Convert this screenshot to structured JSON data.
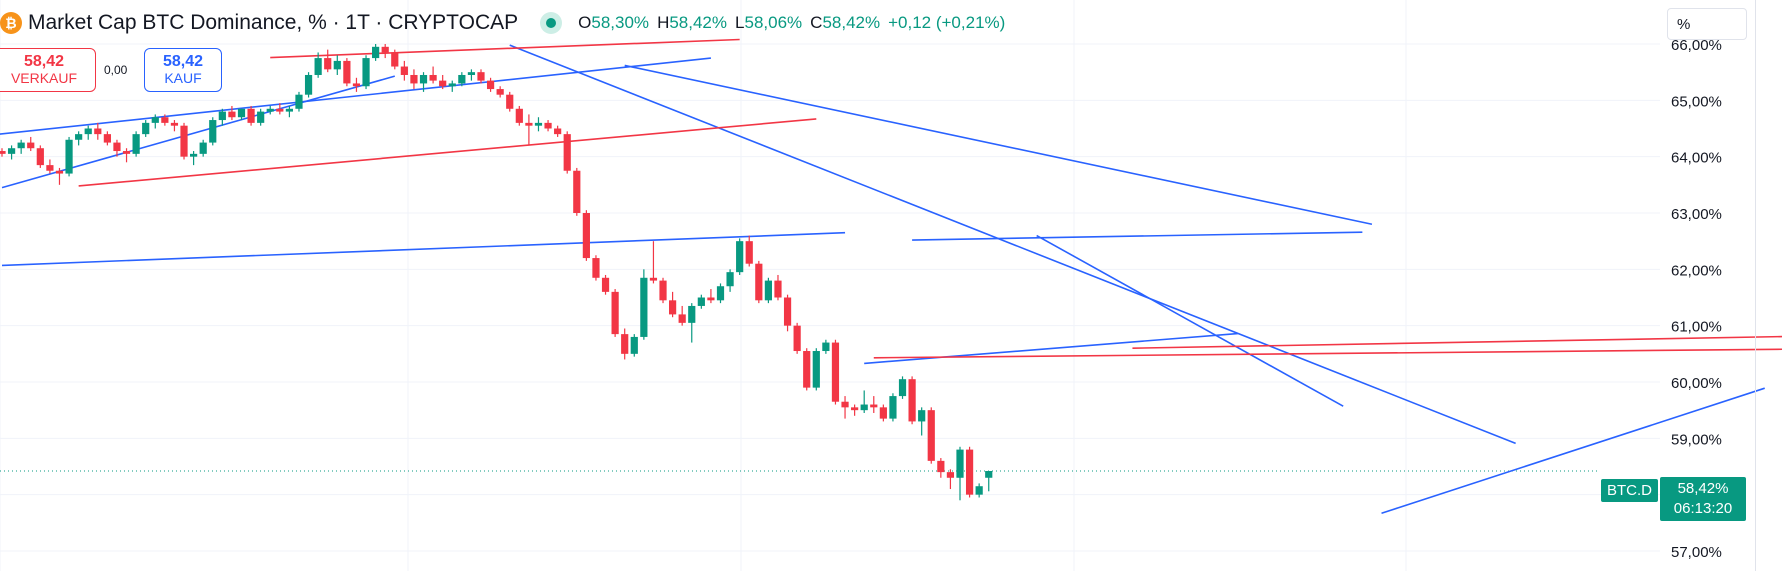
{
  "header": {
    "coin_glyph": "₿",
    "title": "Market Cap BTC Dominance, % · 1T · CRYPTOCAP",
    "ohlc": [
      {
        "k": "O",
        "v": "58,30%"
      },
      {
        "k": "H",
        "v": "58,42%"
      },
      {
        "k": "L",
        "v": "58,06%"
      },
      {
        "k": "C",
        "v": "58,42%"
      },
      {
        "k": "",
        "v": "+0,12 (+0,21%)"
      }
    ]
  },
  "trade": {
    "sell_price": "58,42",
    "sell_label": "VERKAUF",
    "spread": "0,00",
    "buy_price": "58,42",
    "buy_label": "KAUF"
  },
  "scale_mode": "%",
  "last_price": {
    "symbol": "BTC.D",
    "value": "58,42%",
    "countdown": "06:13:20"
  },
  "colors": {
    "up": "#089981",
    "down": "#f23645",
    "trend_blue": "#2962ff",
    "trend_red": "#f23645",
    "grid": "#f0f3fa"
  },
  "chart_data": {
    "type": "candlestick",
    "title": "Market Cap BTC Dominance, %",
    "interval": "1T",
    "exchange": "CRYPTOCAP",
    "ylim": [
      57.0,
      66.0
    ],
    "y_ticks": [
      "57,00%",
      "58,00%",
      "59,00%",
      "60,00%",
      "61,00%",
      "62,00%",
      "63,00%",
      "64,00%",
      "65,00%",
      "66,00%"
    ],
    "last_value": 58.42,
    "candles": [
      [
        64.1,
        64.15,
        64.0,
        64.05
      ],
      [
        64.05,
        64.2,
        63.95,
        64.15
      ],
      [
        64.15,
        64.3,
        64.05,
        64.25
      ],
      [
        64.25,
        64.35,
        64.1,
        64.15
      ],
      [
        64.15,
        64.2,
        63.8,
        63.85
      ],
      [
        63.85,
        63.95,
        63.7,
        63.75
      ],
      [
        63.75,
        63.8,
        63.5,
        63.7
      ],
      [
        63.7,
        64.35,
        63.65,
        64.3
      ],
      [
        64.3,
        64.45,
        64.2,
        64.4
      ],
      [
        64.4,
        64.55,
        64.3,
        64.5
      ],
      [
        64.5,
        64.6,
        64.3,
        64.4
      ],
      [
        64.4,
        64.45,
        64.2,
        64.25
      ],
      [
        64.25,
        64.3,
        64.0,
        64.1
      ],
      [
        64.1,
        64.15,
        63.9,
        64.05
      ],
      [
        64.05,
        64.45,
        64.0,
        64.4
      ],
      [
        64.4,
        64.65,
        64.35,
        64.6
      ],
      [
        64.6,
        64.75,
        64.5,
        64.7
      ],
      [
        64.7,
        64.75,
        64.55,
        64.6
      ],
      [
        64.6,
        64.65,
        64.45,
        64.55
      ],
      [
        64.55,
        64.6,
        63.95,
        64.0
      ],
      [
        64.0,
        64.1,
        63.85,
        64.05
      ],
      [
        64.05,
        64.3,
        64.0,
        64.25
      ],
      [
        64.25,
        64.7,
        64.2,
        64.65
      ],
      [
        64.65,
        64.85,
        64.55,
        64.8
      ],
      [
        64.8,
        64.9,
        64.65,
        64.7
      ],
      [
        64.7,
        64.85,
        64.65,
        64.85
      ],
      [
        64.85,
        64.9,
        64.55,
        64.6
      ],
      [
        64.6,
        64.85,
        64.55,
        64.8
      ],
      [
        64.8,
        64.9,
        64.75,
        64.85
      ],
      [
        64.85,
        64.95,
        64.75,
        64.8
      ],
      [
        64.8,
        64.9,
        64.7,
        64.85
      ],
      [
        64.85,
        65.15,
        64.8,
        65.1
      ],
      [
        65.1,
        65.5,
        65.05,
        65.45
      ],
      [
        65.45,
        65.85,
        65.4,
        65.75
      ],
      [
        65.75,
        65.9,
        65.5,
        65.55
      ],
      [
        65.55,
        65.8,
        65.45,
        65.7
      ],
      [
        65.7,
        65.75,
        65.25,
        65.3
      ],
      [
        65.3,
        65.4,
        65.15,
        65.25
      ],
      [
        65.25,
        65.8,
        65.2,
        65.75
      ],
      [
        65.75,
        66.0,
        65.7,
        65.95
      ],
      [
        65.95,
        66.0,
        65.75,
        65.85
      ],
      [
        65.85,
        65.9,
        65.55,
        65.6
      ],
      [
        65.6,
        65.7,
        65.35,
        65.45
      ],
      [
        65.45,
        65.55,
        65.2,
        65.3
      ],
      [
        65.3,
        65.5,
        65.15,
        65.45
      ],
      [
        65.45,
        65.6,
        65.3,
        65.35
      ],
      [
        65.35,
        65.45,
        65.2,
        65.25
      ],
      [
        65.25,
        65.35,
        65.15,
        65.3
      ],
      [
        65.3,
        65.5,
        65.25,
        65.45
      ],
      [
        65.45,
        65.55,
        65.35,
        65.5
      ],
      [
        65.5,
        65.55,
        65.3,
        65.35
      ],
      [
        65.35,
        65.4,
        65.15,
        65.2
      ],
      [
        65.2,
        65.25,
        65.05,
        65.1
      ],
      [
        65.1,
        65.15,
        64.8,
        64.85
      ],
      [
        64.85,
        64.9,
        64.55,
        64.6
      ],
      [
        64.6,
        64.75,
        64.2,
        64.55
      ],
      [
        64.55,
        64.7,
        64.45,
        64.6
      ],
      [
        64.6,
        64.65,
        64.45,
        64.5
      ],
      [
        64.5,
        64.55,
        64.35,
        64.4
      ],
      [
        64.4,
        64.45,
        63.7,
        63.75
      ],
      [
        63.75,
        63.8,
        62.95,
        63.0
      ],
      [
        63.0,
        63.05,
        62.15,
        62.2
      ],
      [
        62.2,
        62.25,
        61.8,
        61.85
      ],
      [
        61.85,
        61.9,
        61.55,
        61.6
      ],
      [
        61.6,
        61.65,
        60.8,
        60.85
      ],
      [
        60.85,
        60.95,
        60.4,
        60.5
      ],
      [
        60.5,
        60.85,
        60.45,
        60.8
      ],
      [
        60.8,
        62.0,
        60.75,
        61.85
      ],
      [
        61.85,
        62.5,
        61.75,
        61.8
      ],
      [
        61.8,
        61.85,
        61.4,
        61.45
      ],
      [
        61.45,
        61.6,
        61.15,
        61.2
      ],
      [
        61.2,
        61.35,
        61.0,
        61.05
      ],
      [
        61.05,
        61.4,
        60.7,
        61.35
      ],
      [
        61.35,
        61.55,
        61.3,
        61.5
      ],
      [
        61.5,
        61.65,
        61.4,
        61.45
      ],
      [
        61.45,
        61.75,
        61.4,
        61.7
      ],
      [
        61.7,
        62.0,
        61.6,
        61.95
      ],
      [
        61.95,
        62.55,
        61.9,
        62.5
      ],
      [
        62.5,
        62.6,
        62.05,
        62.1
      ],
      [
        62.1,
        62.15,
        61.4,
        61.45
      ],
      [
        61.45,
        61.85,
        61.4,
        61.8
      ],
      [
        61.8,
        61.9,
        61.45,
        61.5
      ],
      [
        61.5,
        61.55,
        60.9,
        61.0
      ],
      [
        61.0,
        61.05,
        60.5,
        60.55
      ],
      [
        60.55,
        60.6,
        59.85,
        59.9
      ],
      [
        59.9,
        60.6,
        59.85,
        60.55
      ],
      [
        60.55,
        60.75,
        60.5,
        60.7
      ],
      [
        60.7,
        60.75,
        59.6,
        59.65
      ],
      [
        59.65,
        59.75,
        59.35,
        59.55
      ],
      [
        59.55,
        59.6,
        59.4,
        59.5
      ],
      [
        59.5,
        59.85,
        59.45,
        59.6
      ],
      [
        59.6,
        59.75,
        59.45,
        59.55
      ],
      [
        59.55,
        59.6,
        59.3,
        59.35
      ],
      [
        59.35,
        59.8,
        59.3,
        59.75
      ],
      [
        59.75,
        60.1,
        59.7,
        60.05
      ],
      [
        60.05,
        60.1,
        59.25,
        59.3
      ],
      [
        59.3,
        59.55,
        59.05,
        59.5
      ],
      [
        59.5,
        59.55,
        58.55,
        58.6
      ],
      [
        58.6,
        58.65,
        58.3,
        58.4
      ],
      [
        58.4,
        58.45,
        58.1,
        58.3
      ],
      [
        58.3,
        58.85,
        57.9,
        58.8
      ],
      [
        58.8,
        58.85,
        57.95,
        58.0
      ],
      [
        58.0,
        58.2,
        57.95,
        58.15
      ],
      [
        58.3,
        58.42,
        58.06,
        58.42
      ]
    ],
    "trendlines": [
      {
        "color": "blue",
        "from": [
          0,
          63.45
        ],
        "to": [
          41,
          65.43
        ]
      },
      {
        "color": "blue",
        "from": [
          0,
          62.07
        ],
        "to": [
          88,
          62.65
        ]
      },
      {
        "color": "blue",
        "from": [
          -3,
          64.35
        ],
        "to": [
          74,
          65.75
        ]
      },
      {
        "color": "blue",
        "from": [
          53,
          65.98
        ],
        "to": [
          158,
          58.91
        ]
      },
      {
        "color": "blue",
        "from": [
          65,
          65.62
        ],
        "to": [
          143,
          62.8
        ]
      },
      {
        "color": "blue",
        "from": [
          95,
          62.52
        ],
        "to": [
          142,
          62.66
        ]
      },
      {
        "color": "blue",
        "from": [
          90,
          60.33
        ],
        "to": [
          129,
          60.86
        ]
      },
      {
        "color": "blue",
        "from": [
          108,
          62.6
        ],
        "to": [
          140,
          59.57
        ]
      },
      {
        "color": "blue",
        "from": [
          144,
          57.67
        ],
        "to": [
          184,
          59.89
        ]
      },
      {
        "color": "red",
        "from": [
          8,
          63.48
        ],
        "to": [
          85,
          64.67
        ]
      },
      {
        "color": "red",
        "from": [
          28,
          65.76
        ],
        "to": [
          77,
          66.08
        ]
      },
      {
        "color": "red",
        "from": [
          91,
          60.43
        ],
        "to": [
          210,
          60.62
        ]
      },
      {
        "color": "red",
        "from": [
          118,
          60.6
        ],
        "to": [
          210,
          60.88
        ]
      }
    ]
  }
}
